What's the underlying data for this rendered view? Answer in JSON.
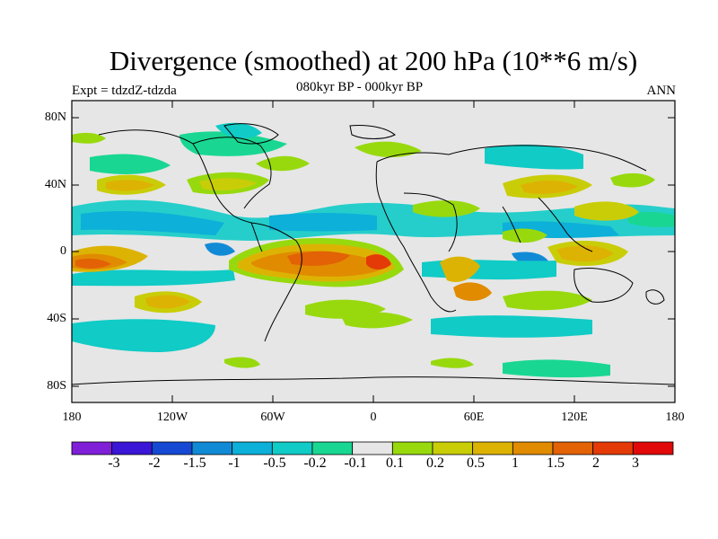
{
  "title": "Divergence (smoothed) at 200 hPa (10**6 m/s)",
  "experiment": "Expt = tdzdZ-tdzda",
  "period": "080kyr BP - 000kyr BP",
  "season": "ANN",
  "map": {
    "lat_ticks": [
      "80N",
      "40N",
      "0",
      "40S",
      "80S"
    ],
    "lon_ticks": [
      "180",
      "120W",
      "60W",
      "0",
      "60E",
      "120E",
      "180"
    ],
    "lat_range": [
      -90,
      90
    ],
    "lon_range": [
      -180,
      180
    ]
  },
  "colorbar": {
    "colors": [
      "#7f1fd8",
      "#3a16d6",
      "#1549d4",
      "#118ad6",
      "#0cb0d8",
      "#10cbc6",
      "#19d792",
      "#e6e6e6",
      "#98d90e",
      "#c9cd08",
      "#ddb303",
      "#e18b01",
      "#e26205",
      "#e33a08",
      "#e10909"
    ],
    "labels": [
      "-3",
      "-2",
      "-1.5",
      "-1",
      "-0.5",
      "-0.2",
      "-0.1",
      "0.1",
      "0.2",
      "0.5",
      "1",
      "1.5",
      "2",
      "3"
    ]
  },
  "colors": {
    "background_field": "#e6e6e6",
    "coastline": "#000000"
  }
}
